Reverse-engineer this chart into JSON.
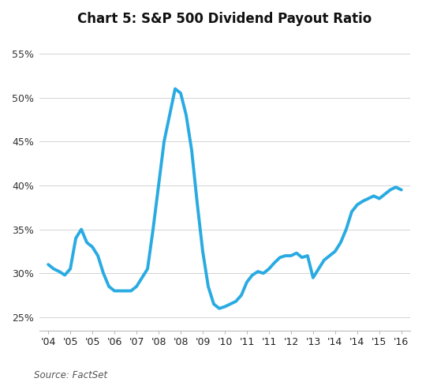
{
  "title": "Chart 5: S&P 500 Dividend Payout Ratio",
  "source_text": "Source: FactSet",
  "line_color": "#29ABE2",
  "line_width": 2.8,
  "background_color": "#ffffff",
  "ylim": [
    23.5,
    57
  ],
  "yticks": [
    25,
    30,
    35,
    40,
    45,
    50,
    55
  ],
  "x_tick_labels": [
    "'04",
    "'05",
    "'05",
    "'06",
    "'07",
    "'08",
    "'08",
    "'09",
    "'10",
    "'11",
    "'11",
    "'12",
    "'13",
    "'14",
    "'14",
    "'15",
    "'16"
  ],
  "x_tick_positions": [
    0,
    2,
    4,
    6,
    8,
    10,
    12,
    14,
    16,
    18,
    20,
    22,
    24,
    26,
    28,
    30,
    32
  ],
  "data_x": [
    0,
    0.5,
    1,
    1.5,
    2,
    2.5,
    3,
    3.5,
    4,
    4.5,
    5,
    5.5,
    6,
    6.5,
    7,
    7.5,
    8,
    8.5,
    9,
    9.5,
    10,
    10.5,
    11,
    11.5,
    12,
    12.5,
    13,
    13.5,
    14,
    14.5,
    15,
    15.5,
    16,
    16.5,
    17,
    17.5,
    18,
    18.5,
    19,
    19.5,
    20,
    20.5,
    21,
    21.5,
    22,
    22.5,
    23,
    23.5,
    24,
    24.5,
    25,
    25.5,
    26,
    26.5,
    27,
    27.5,
    28,
    28.5,
    29,
    29.5,
    30,
    30.5,
    31,
    31.5,
    32
  ],
  "data_y": [
    31.0,
    30.5,
    30.2,
    29.8,
    30.5,
    34.0,
    35.0,
    33.5,
    33.0,
    32.0,
    30.0,
    28.5,
    28.0,
    28.0,
    28.0,
    28.0,
    28.5,
    29.5,
    30.5,
    35.0,
    40.0,
    45.0,
    48.0,
    51.0,
    50.5,
    48.0,
    44.0,
    38.0,
    32.5,
    28.5,
    26.5,
    26.0,
    26.2,
    26.5,
    26.8,
    27.5,
    29.0,
    29.8,
    30.2,
    30.0,
    30.5,
    31.2,
    31.8,
    32.0,
    32.0,
    32.3,
    31.8,
    32.0,
    29.5,
    30.5,
    31.5,
    32.0,
    32.5,
    33.5,
    35.0,
    37.0,
    37.8,
    38.2,
    38.5,
    38.8,
    38.5,
    39.0,
    39.5,
    39.8,
    39.5
  ]
}
